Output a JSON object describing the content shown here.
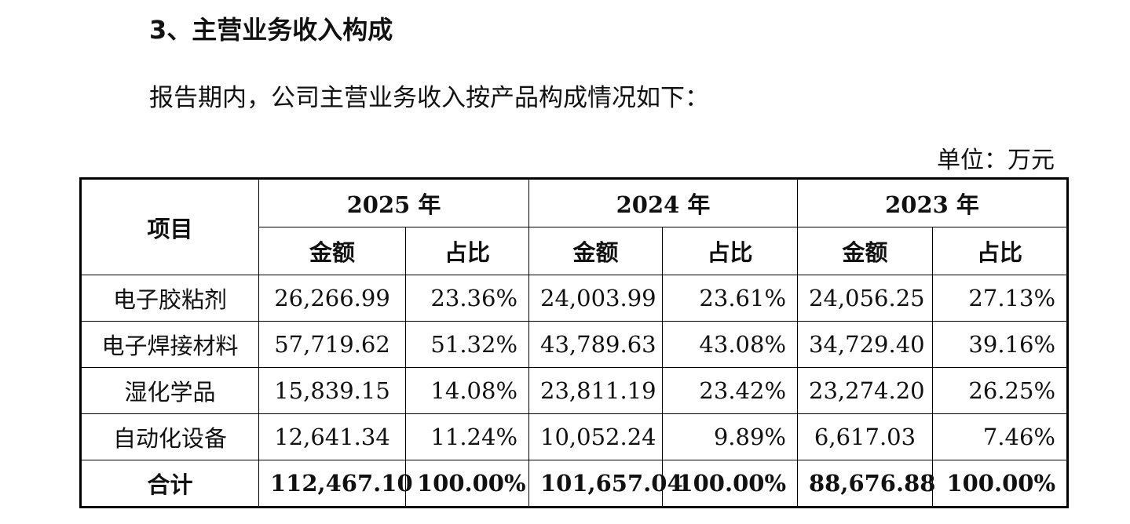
{
  "section_title": "3、主营业务收入构成",
  "intro_text": "报告期内，公司主营业务收入按产品构成情况如下：",
  "unit_label": "单位：万元",
  "table": {
    "item_header": "项目",
    "years": [
      "2025 年",
      "2024 年",
      "2023 年"
    ],
    "sub_headers": [
      "金额",
      "占比",
      "金额",
      "占比",
      "金额",
      "占比"
    ],
    "rows": [
      {
        "item": "电子胶粘剂",
        "cells": [
          "26,266.99",
          "23.36%",
          "24,003.99",
          "23.61%",
          "24,056.25",
          "27.13%"
        ]
      },
      {
        "item": "电子焊接材料",
        "cells": [
          "57,719.62",
          "51.32%",
          "43,789.63",
          "43.08%",
          "34,729.40",
          "39.16%"
        ]
      },
      {
        "item": "湿化学品",
        "cells": [
          "15,839.15",
          "14.08%",
          "23,811.19",
          "23.42%",
          "23,274.20",
          "26.25%"
        ]
      },
      {
        "item": "自动化设备",
        "cells": [
          "12,641.34",
          "11.24%",
          "10,052.24",
          "9.89%",
          "6,617.03",
          "7.46%"
        ]
      }
    ],
    "total": {
      "item": "合计",
      "cells": [
        "112,467.10",
        "100.00%",
        "101,657.04",
        "100.00%",
        "88,676.88",
        "100.00%"
      ]
    }
  }
}
